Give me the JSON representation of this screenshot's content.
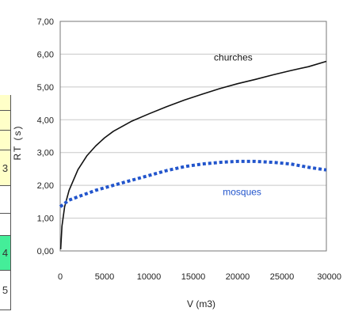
{
  "left_strip": {
    "cells": [
      {
        "text": "",
        "color": "#ffffc8"
      },
      {
        "text": "",
        "color": "#ffffc8"
      },
      {
        "text": "",
        "color": "#ffffc8"
      },
      {
        "text": "3",
        "color": "#ffffc8"
      },
      {
        "text": "",
        "color": "#ffffff"
      },
      {
        "text": "",
        "color": "#ffffff"
      },
      {
        "text": "4",
        "color": "#44ee99"
      },
      {
        "text": "5",
        "color": "#ffffff"
      }
    ]
  },
  "chart_data": {
    "type": "line",
    "xlabel": "V (m3)",
    "ylabel": "RT (s)",
    "xlim": [
      0,
      30000
    ],
    "ylim": [
      0,
      7
    ],
    "x_ticks": [
      0,
      5000,
      10000,
      15000,
      20000,
      25000,
      30000
    ],
    "x_tick_labels": [
      "0",
      "5000",
      "10000",
      "15000",
      "20000",
      "25000",
      "30000"
    ],
    "y_ticks": [
      0,
      1,
      2,
      3,
      4,
      5,
      6,
      7
    ],
    "y_tick_labels": [
      "0,00",
      "1,00",
      "2,00",
      "3,00",
      "4,00",
      "5,00",
      "6,00",
      "7,00"
    ],
    "grid": true,
    "series": [
      {
        "name": "churches",
        "color": "#111111",
        "style": "solid",
        "label_at": [
          19500,
          5.8
        ],
        "x": [
          50,
          200,
          500,
          1000,
          2000,
          3000,
          4000,
          5000,
          6000,
          8000,
          10000,
          12000,
          14000,
          16000,
          18000,
          20000,
          22000,
          24000,
          26000,
          28000,
          30000
        ],
        "y": [
          0.05,
          0.75,
          1.35,
          1.85,
          2.48,
          2.9,
          3.2,
          3.45,
          3.65,
          3.95,
          4.18,
          4.4,
          4.6,
          4.78,
          4.95,
          5.1,
          5.23,
          5.37,
          5.5,
          5.62,
          5.78
        ]
      },
      {
        "name": "mosques",
        "color": "#2255cc",
        "style": "dotted",
        "label_at": [
          20500,
          1.7
        ],
        "x": [
          0,
          1000,
          2000,
          4000,
          6000,
          8000,
          10000,
          12000,
          14000,
          16000,
          18000,
          20000,
          22000,
          24000,
          26000,
          28000,
          30000
        ],
        "y": [
          1.35,
          1.55,
          1.65,
          1.85,
          2.0,
          2.15,
          2.3,
          2.45,
          2.57,
          2.65,
          2.7,
          2.73,
          2.73,
          2.7,
          2.65,
          2.55,
          2.47
        ]
      }
    ]
  }
}
